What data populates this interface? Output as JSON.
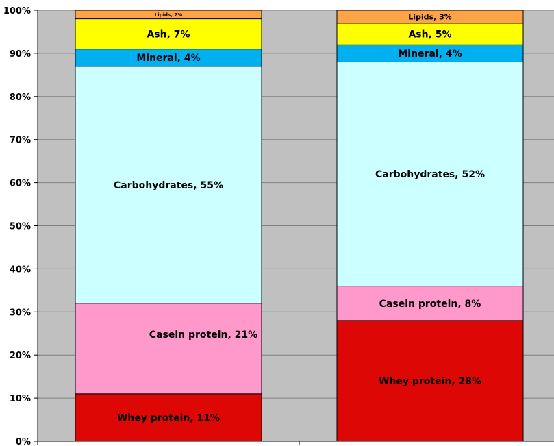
{
  "chart_data": {
    "type": "bar",
    "stacked": true,
    "percent_stacked": true,
    "categories": [
      "",
      ""
    ],
    "ylim": [
      0,
      100
    ],
    "yticks": [
      "0%",
      "10%",
      "20%",
      "30%",
      "40%",
      "50%",
      "60%",
      "70%",
      "80%",
      "90%",
      "100%"
    ],
    "grid": true,
    "plot_background": "#c0c0c0",
    "series": [
      {
        "key": "whey",
        "color": "#dd0806",
        "text_color": "#ffffff",
        "values": [
          11,
          28
        ],
        "labels": [
          "Whey protein, 11%",
          "Whey protein, 28%"
        ]
      },
      {
        "key": "casein",
        "color": "#ff99cc",
        "text_color": "#000000",
        "values": [
          21,
          8
        ],
        "labels": [
          "Casein protein, 21%",
          "Casein protein, 8%"
        ]
      },
      {
        "key": "carbs",
        "color": "#ccffff",
        "text_color": "#000000",
        "values": [
          55,
          52
        ],
        "labels": [
          "Carbohydrates, 55%",
          "Carbohydrates, 52%"
        ]
      },
      {
        "key": "mineral",
        "color": "#00b0f0",
        "text_color": "#000000",
        "values": [
          4,
          4
        ],
        "labels": [
          "Mineral, 4%",
          "Mineral, 4%"
        ]
      },
      {
        "key": "ash",
        "color": "#ffff00",
        "text_color": "#000000",
        "values": [
          7,
          5
        ],
        "labels": [
          "Ash, 7%",
          "Ash, 5%"
        ]
      },
      {
        "key": "lipids",
        "color": "#ffa347",
        "text_color": "#000000",
        "values": [
          2,
          3
        ],
        "labels": [
          "Lipids, 2%",
          "Lipids, 3%"
        ]
      }
    ]
  }
}
